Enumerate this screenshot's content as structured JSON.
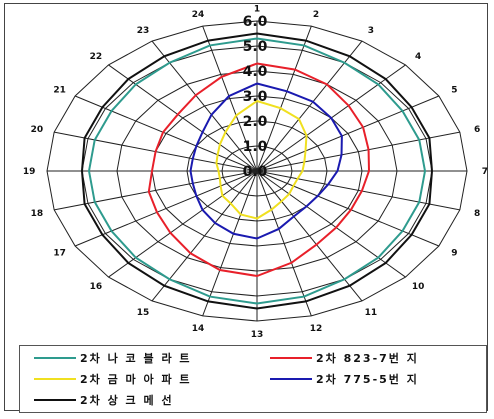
{
  "chart_data": {
    "type": "radar",
    "angle_labels": [
      "1",
      "2",
      "3",
      "4",
      "5",
      "6",
      "7",
      "8",
      "9",
      "10",
      "11",
      "12",
      "13",
      "14",
      "15",
      "16",
      "17",
      "18",
      "19",
      "20",
      "21",
      "22",
      "23",
      "24"
    ],
    "radial_tick_labels": [
      "0.0",
      "1.0",
      "2.0",
      "3.0",
      "4.0",
      "5.0",
      "6.0"
    ],
    "rlim": [
      0,
      6
    ],
    "grid": true,
    "legend_position": "bottom",
    "series": [
      {
        "name": "2차 나 코 블 라 트",
        "color": "#2e9b8e",
        "values": [
          5.3,
          5.2,
          5.0,
          4.9,
          4.8,
          4.8,
          4.8,
          4.8,
          4.8,
          4.9,
          5.0,
          5.2,
          5.3,
          5.2,
          5.0,
          4.9,
          4.8,
          4.8,
          4.8,
          4.8,
          4.8,
          4.9,
          5.0,
          5.2
        ]
      },
      {
        "name": "2차 823-7번 지",
        "color": "#e8202a",
        "values": [
          4.3,
          4.2,
          4.0,
          3.7,
          3.5,
          3.3,
          3.2,
          3.1,
          3.1,
          3.2,
          3.4,
          3.8,
          4.2,
          4.1,
          3.8,
          3.5,
          3.3,
          3.2,
          3.0,
          3.0,
          3.1,
          3.2,
          3.5,
          3.9
        ]
      },
      {
        "name": "2차 금 마 아 파 트",
        "color": "#f0e020",
        "values": [
          2.8,
          2.6,
          2.4,
          2.0,
          1.6,
          1.4,
          1.3,
          1.2,
          1.2,
          1.3,
          1.4,
          1.6,
          1.9,
          1.8,
          1.5,
          1.4,
          1.2,
          1.1,
          1.1,
          1.2,
          1.3,
          1.5,
          1.8,
          2.3
        ]
      },
      {
        "name": "2차 775-5번 지",
        "color": "#1a1ab0",
        "values": [
          3.5,
          3.3,
          3.2,
          3.0,
          2.8,
          2.5,
          2.3,
          2.1,
          2.0,
          2.0,
          2.1,
          2.4,
          2.7,
          2.6,
          2.4,
          2.2,
          2.0,
          1.9,
          1.9,
          1.9,
          2.0,
          2.2,
          2.6,
          3.1
        ]
      },
      {
        "name": "2차 상 크 메 선",
        "color": "#111111",
        "values": [
          5.5,
          5.4,
          5.3,
          5.2,
          5.1,
          5.1,
          5.0,
          5.1,
          5.1,
          5.2,
          5.3,
          5.4,
          5.5,
          5.4,
          5.3,
          5.2,
          5.1,
          5.1,
          5.0,
          5.1,
          5.1,
          5.2,
          5.3,
          5.4
        ]
      }
    ]
  }
}
